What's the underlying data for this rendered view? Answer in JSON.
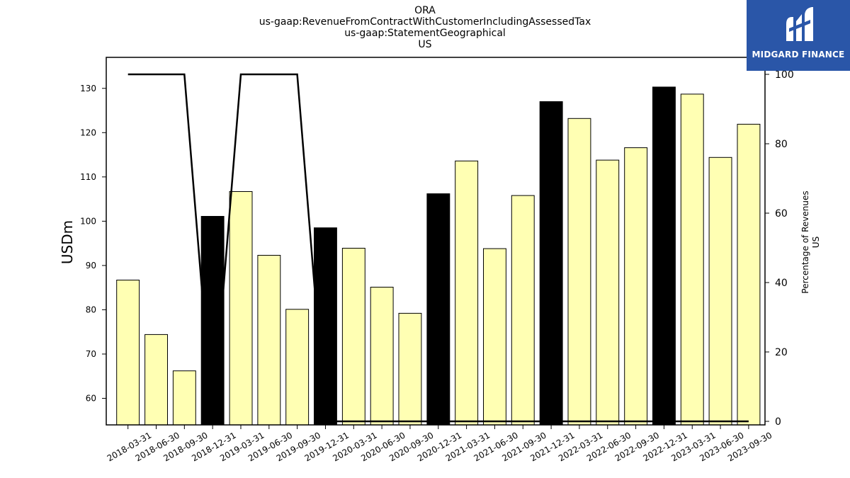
{
  "header": {
    "title_lines": [
      "ORA",
      "us-gaap:RevenueFromContractWithCustomerIncludingAssessedTax",
      "us-gaap:StatementGeographical",
      "US"
    ]
  },
  "logo": {
    "text": "MIDGARD FINANCE",
    "color": "#2a56a8"
  },
  "chart_data": {
    "type": "bar",
    "categories": [
      "2018-03-31",
      "2018-06-30",
      "2018-09-30",
      "2018-12-31",
      "2019-03-31",
      "2019-06-30",
      "2019-09-30",
      "2019-12-31",
      "2020-03-31",
      "2020-06-30",
      "2020-09-30",
      "2020-12-31",
      "2021-03-31",
      "2021-06-30",
      "2021-09-30",
      "2021-12-31",
      "2022-03-31",
      "2022-06-30",
      "2022-09-30",
      "2022-12-31",
      "2023-03-31",
      "2023-06-30",
      "2023-09-30"
    ],
    "values": [
      86.7,
      74.4,
      66.2,
      101.1,
      106.7,
      92.3,
      80.1,
      98.5,
      93.9,
      85.1,
      79.2,
      106.2,
      113.6,
      93.8,
      105.8,
      127.0,
      123.2,
      113.8,
      116.6,
      130.3,
      128.7,
      114.4,
      121.9
    ],
    "year_end": [
      false,
      false,
      false,
      true,
      false,
      false,
      false,
      true,
      false,
      false,
      false,
      true,
      false,
      false,
      false,
      true,
      false,
      false,
      false,
      true,
      false,
      false,
      false
    ],
    "colors": {
      "quarter": "#ffffb3",
      "year_end": "#000000",
      "line": "#000000"
    },
    "ylabel": "USDm",
    "ylim": [
      54,
      137
    ],
    "yticks": [
      60,
      70,
      80,
      90,
      100,
      110,
      120,
      130
    ],
    "y2label_lines": [
      "Percentage of Revenues",
      "US"
    ],
    "y2lim": [
      0,
      100
    ],
    "y2ticks": [
      0,
      20,
      40,
      60,
      80,
      100
    ],
    "percentage": [
      100,
      100,
      100,
      0,
      100,
      100,
      100,
      0,
      0,
      0,
      0,
      0,
      0,
      0,
      0,
      0,
      0,
      0,
      0,
      0,
      0,
      0,
      0
    ]
  }
}
